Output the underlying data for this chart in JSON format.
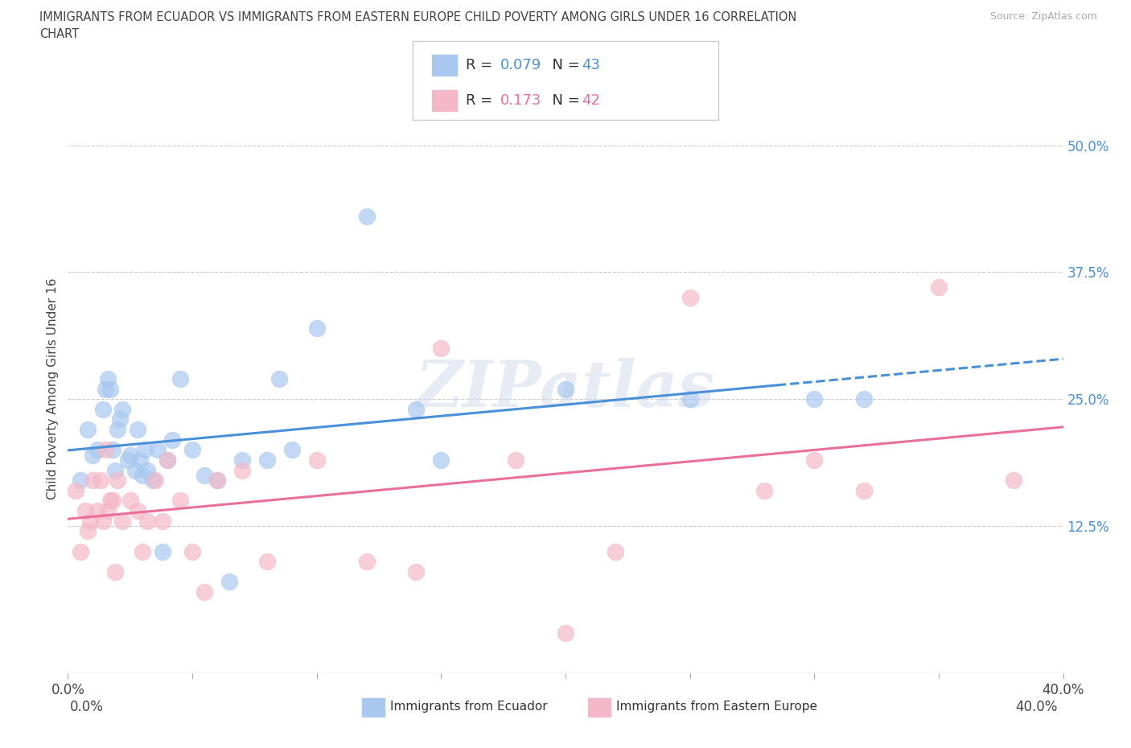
{
  "title_line1": "IMMIGRANTS FROM ECUADOR VS IMMIGRANTS FROM EASTERN EUROPE CHILD POVERTY AMONG GIRLS UNDER 16 CORRELATION",
  "title_line2": "CHART",
  "source": "Source: ZipAtlas.com",
  "ylabel": "Child Poverty Among Girls Under 16",
  "xlim": [
    0.0,
    0.4
  ],
  "ylim": [
    -0.02,
    0.54
  ],
  "plot_ylim": [
    -0.02,
    0.54
  ],
  "xtick_values": [
    0.0,
    0.05,
    0.1,
    0.15,
    0.2,
    0.25,
    0.3,
    0.35,
    0.4
  ],
  "ytick_values": [
    0.125,
    0.25,
    0.375,
    0.5
  ],
  "ytick_labels": [
    "12.5%",
    "25.0%",
    "37.5%",
    "50.0%"
  ],
  "hgrid_values": [
    0.125,
    0.25,
    0.375,
    0.5
  ],
  "ecuador_color": "#a8c8f0",
  "eastern_europe_color": "#f5b8c8",
  "ecuador_line_color": "#4a90d9",
  "eastern_europe_line_color": "#e8709a",
  "R_ecuador": 0.079,
  "N_ecuador": 43,
  "R_eastern_europe": 0.173,
  "N_eastern_europe": 42,
  "legend_label_ecuador": "Immigrants from Ecuador",
  "legend_label_eastern_europe": "Immigrants from Eastern Europe",
  "watermark": "ZIPatlas",
  "ecuador_x": [
    0.005,
    0.008,
    0.01,
    0.012,
    0.014,
    0.015,
    0.016,
    0.017,
    0.018,
    0.019,
    0.02,
    0.021,
    0.022,
    0.024,
    0.025,
    0.027,
    0.028,
    0.029,
    0.03,
    0.031,
    0.032,
    0.034,
    0.036,
    0.038,
    0.04,
    0.042,
    0.045,
    0.05,
    0.055,
    0.06,
    0.065,
    0.07,
    0.08,
    0.085,
    0.09,
    0.1,
    0.12,
    0.14,
    0.15,
    0.2,
    0.25,
    0.3,
    0.32
  ],
  "ecuador_y": [
    0.17,
    0.22,
    0.195,
    0.2,
    0.24,
    0.26,
    0.27,
    0.26,
    0.2,
    0.18,
    0.22,
    0.23,
    0.24,
    0.19,
    0.195,
    0.18,
    0.22,
    0.19,
    0.175,
    0.2,
    0.18,
    0.17,
    0.2,
    0.1,
    0.19,
    0.21,
    0.27,
    0.2,
    0.175,
    0.17,
    0.07,
    0.19,
    0.19,
    0.27,
    0.2,
    0.32,
    0.43,
    0.24,
    0.19,
    0.26,
    0.25,
    0.25,
    0.25
  ],
  "eastern_europe_x": [
    0.003,
    0.005,
    0.007,
    0.008,
    0.009,
    0.01,
    0.012,
    0.013,
    0.014,
    0.015,
    0.016,
    0.017,
    0.018,
    0.019,
    0.02,
    0.022,
    0.025,
    0.028,
    0.03,
    0.032,
    0.035,
    0.038,
    0.04,
    0.045,
    0.05,
    0.055,
    0.06,
    0.07,
    0.08,
    0.1,
    0.12,
    0.14,
    0.15,
    0.18,
    0.2,
    0.22,
    0.25,
    0.28,
    0.3,
    0.32,
    0.35,
    0.38
  ],
  "eastern_europe_y": [
    0.16,
    0.1,
    0.14,
    0.12,
    0.13,
    0.17,
    0.14,
    0.17,
    0.13,
    0.2,
    0.14,
    0.15,
    0.15,
    0.08,
    0.17,
    0.13,
    0.15,
    0.14,
    0.1,
    0.13,
    0.17,
    0.13,
    0.19,
    0.15,
    0.1,
    0.06,
    0.17,
    0.18,
    0.09,
    0.19,
    0.09,
    0.08,
    0.3,
    0.19,
    0.02,
    0.1,
    0.35,
    0.16,
    0.19,
    0.16,
    0.36,
    0.17
  ]
}
